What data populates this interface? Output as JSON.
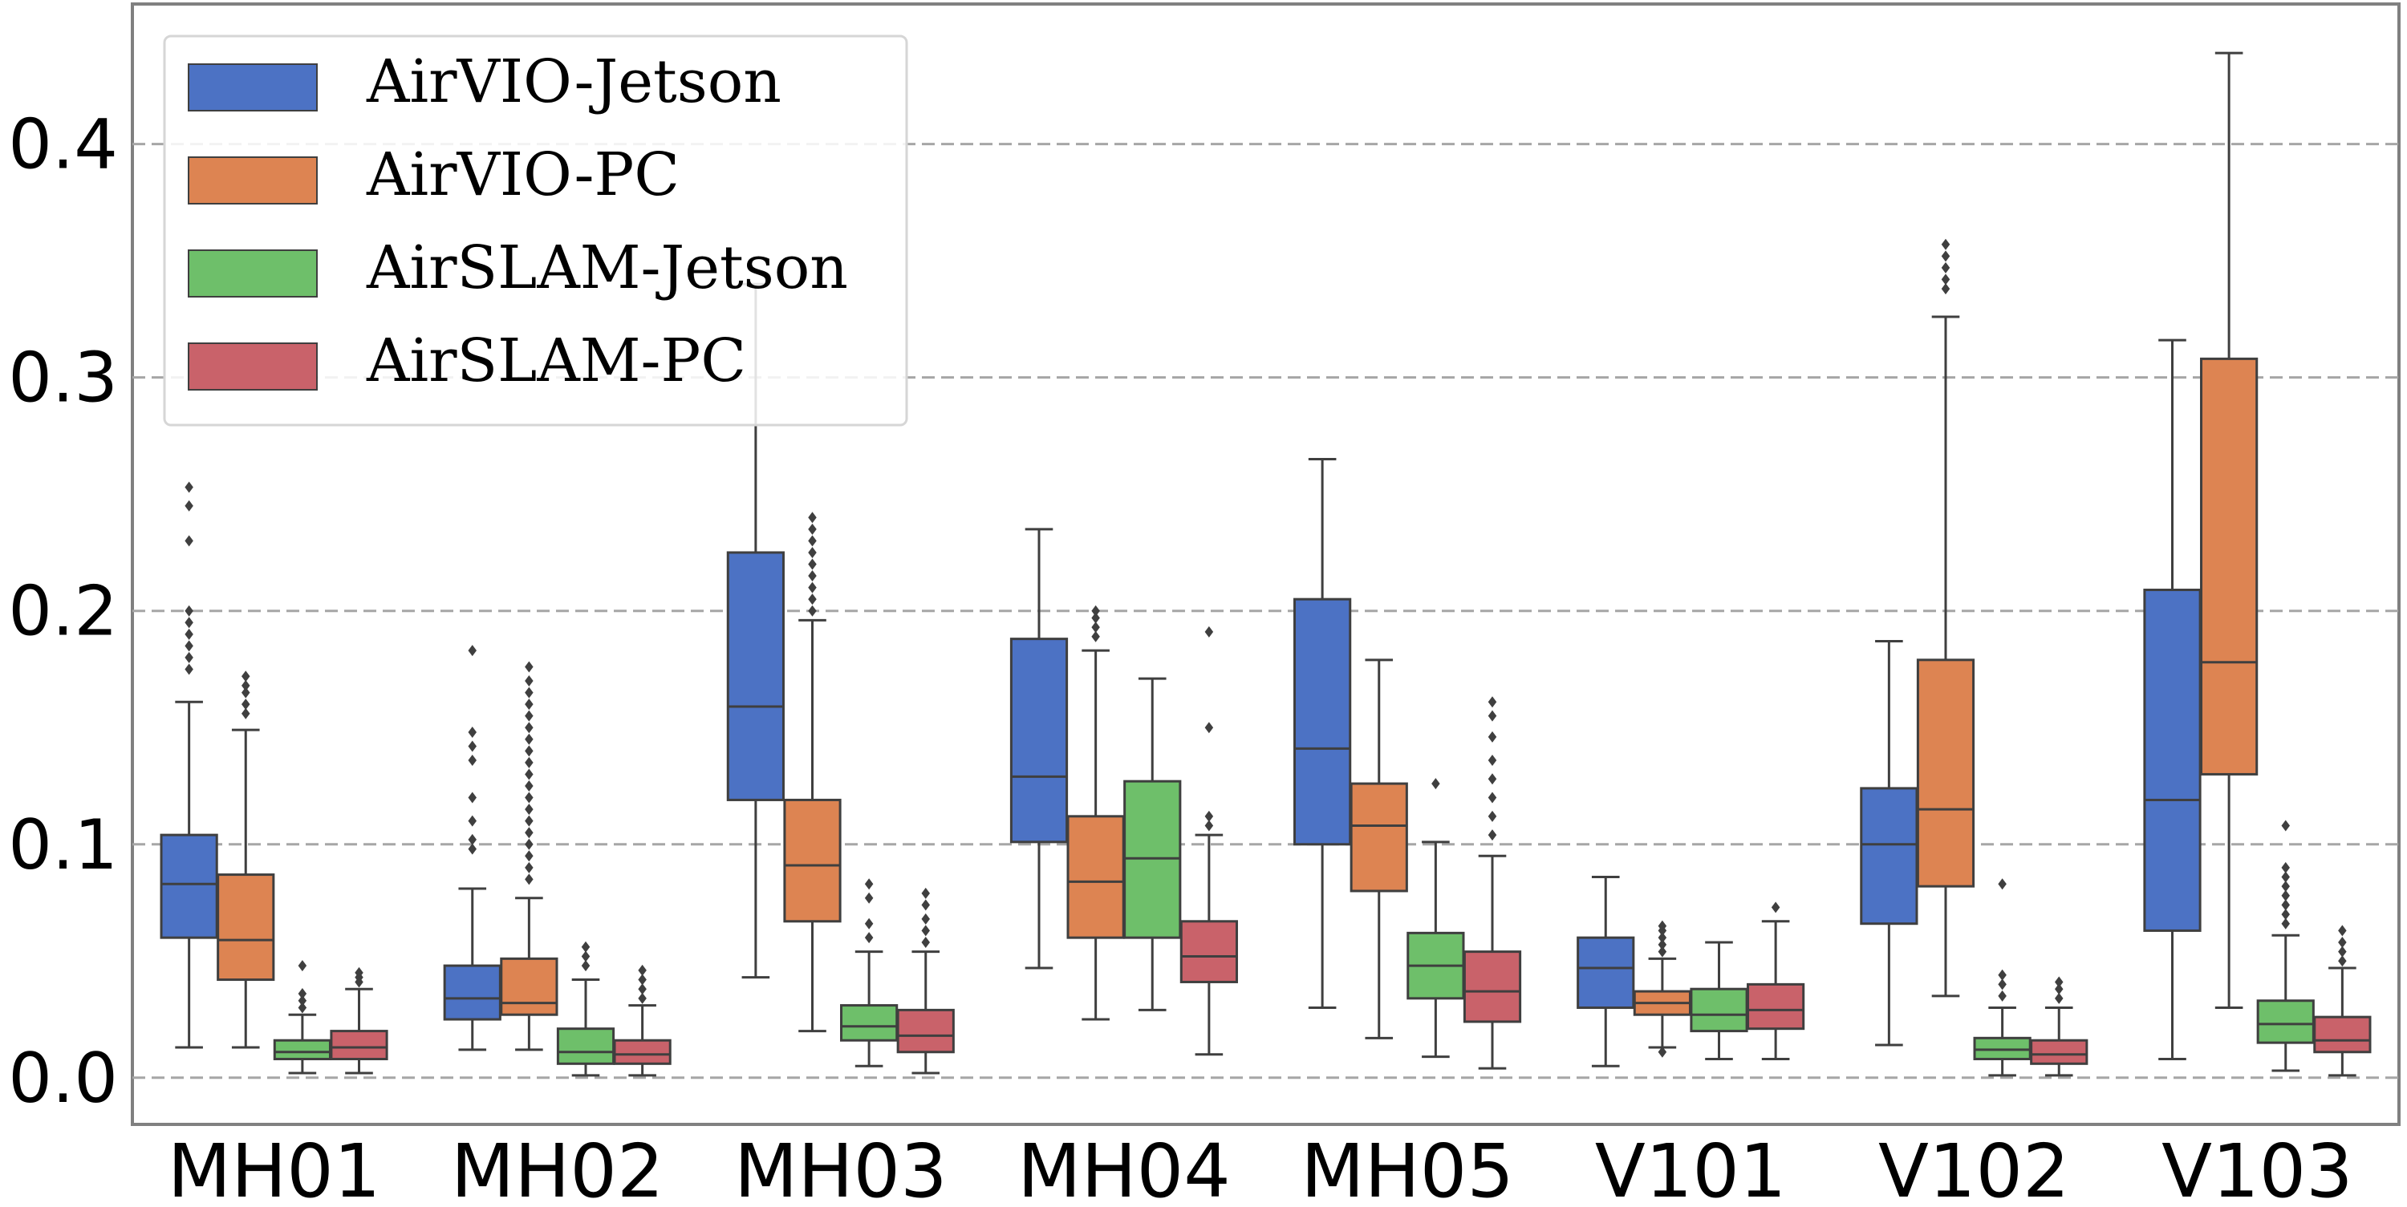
{
  "chart_data": {
    "type": "box",
    "categories": [
      "MH01",
      "MH02",
      "MH03",
      "MH04",
      "MH05",
      "V101",
      "V102",
      "V103"
    ],
    "ylim": [
      -0.02,
      0.46
    ],
    "yticks": [
      0.0,
      0.1,
      0.2,
      0.3,
      0.4
    ],
    "ytick_labels": [
      "0.0",
      "0.1",
      "0.2",
      "0.3",
      "0.4"
    ],
    "grid": "horizontal-dashed",
    "legend_position": "top-left",
    "xlabel": "",
    "ylabel": "",
    "title": "",
    "series": [
      {
        "name": "AirVIO-Jetson",
        "color": "#4c72c4",
        "boxes": [
          {
            "q1": 0.06,
            "median": 0.083,
            "q3": 0.104,
            "whislo": 0.013,
            "whishi": 0.161,
            "fliers": [
              0.175,
              0.18,
              0.185,
              0.19,
              0.195,
              0.2,
              0.23,
              0.245,
              0.253
            ]
          },
          {
            "q1": 0.025,
            "median": 0.034,
            "q3": 0.048,
            "whislo": 0.012,
            "whishi": 0.081,
            "fliers": [
              0.098,
              0.102,
              0.11,
              0.12,
              0.136,
              0.142,
              0.148,
              0.183
            ]
          },
          {
            "q1": 0.119,
            "median": 0.159,
            "q3": 0.225,
            "whislo": 0.043,
            "whishi": 0.34,
            "fliers": []
          },
          {
            "q1": 0.101,
            "median": 0.129,
            "q3": 0.188,
            "whislo": 0.047,
            "whishi": 0.235,
            "fliers": []
          },
          {
            "q1": 0.1,
            "median": 0.141,
            "q3": 0.205,
            "whislo": 0.03,
            "whishi": 0.265,
            "fliers": []
          },
          {
            "q1": 0.03,
            "median": 0.047,
            "q3": 0.06,
            "whislo": 0.005,
            "whishi": 0.086,
            "fliers": []
          },
          {
            "q1": 0.066,
            "median": 0.1,
            "q3": 0.124,
            "whislo": 0.014,
            "whishi": 0.187,
            "fliers": []
          },
          {
            "q1": 0.063,
            "median": 0.119,
            "q3": 0.209,
            "whislo": 0.008,
            "whishi": 0.316,
            "fliers": []
          }
        ]
      },
      {
        "name": "AirVIO-PC",
        "color": "#dd8452",
        "boxes": [
          {
            "q1": 0.042,
            "median": 0.059,
            "q3": 0.087,
            "whislo": 0.013,
            "whishi": 0.149,
            "fliers": [
              0.156,
              0.16,
              0.165,
              0.168,
              0.172
            ]
          },
          {
            "q1": 0.027,
            "median": 0.032,
            "q3": 0.051,
            "whislo": 0.012,
            "whishi": 0.077,
            "fliers": [
              0.085,
              0.09,
              0.095,
              0.1,
              0.105,
              0.11,
              0.115,
              0.12,
              0.125,
              0.13,
              0.135,
              0.14,
              0.145,
              0.15,
              0.155,
              0.16,
              0.165,
              0.17,
              0.176
            ]
          },
          {
            "q1": 0.067,
            "median": 0.091,
            "q3": 0.119,
            "whislo": 0.02,
            "whishi": 0.196,
            "fliers": [
              0.2,
              0.205,
              0.21,
              0.215,
              0.22,
              0.225,
              0.23,
              0.235,
              0.24
            ]
          },
          {
            "q1": 0.06,
            "median": 0.084,
            "q3": 0.112,
            "whislo": 0.025,
            "whishi": 0.183,
            "fliers": [
              0.189,
              0.193,
              0.197,
              0.2
            ]
          },
          {
            "q1": 0.08,
            "median": 0.108,
            "q3": 0.126,
            "whislo": 0.017,
            "whishi": 0.179,
            "fliers": []
          },
          {
            "q1": 0.027,
            "median": 0.032,
            "q3": 0.037,
            "whislo": 0.013,
            "whishi": 0.051,
            "fliers": [
              0.011,
              0.054,
              0.057,
              0.06,
              0.063,
              0.065
            ]
          },
          {
            "q1": 0.082,
            "median": 0.115,
            "q3": 0.179,
            "whislo": 0.035,
            "whishi": 0.326,
            "fliers": [
              0.338,
              0.342,
              0.347,
              0.352,
              0.357
            ]
          },
          {
            "q1": 0.13,
            "median": 0.178,
            "q3": 0.308,
            "whislo": 0.03,
            "whishi": 0.439,
            "fliers": []
          }
        ]
      },
      {
        "name": "AirSLAM-Jetson",
        "color": "#6ebf6a",
        "boxes": [
          {
            "q1": 0.008,
            "median": 0.011,
            "q3": 0.016,
            "whislo": 0.002,
            "whishi": 0.027,
            "fliers": [
              0.03,
              0.033,
              0.036,
              0.048
            ]
          },
          {
            "q1": 0.006,
            "median": 0.011,
            "q3": 0.021,
            "whislo": 0.001,
            "whishi": 0.042,
            "fliers": [
              0.048,
              0.052,
              0.056
            ]
          },
          {
            "q1": 0.016,
            "median": 0.022,
            "q3": 0.031,
            "whislo": 0.005,
            "whishi": 0.054,
            "fliers": [
              0.06,
              0.066,
              0.077,
              0.083
            ]
          },
          {
            "q1": 0.06,
            "median": 0.094,
            "q3": 0.127,
            "whislo": 0.029,
            "whishi": 0.171,
            "fliers": []
          },
          {
            "q1": 0.034,
            "median": 0.048,
            "q3": 0.062,
            "whislo": 0.009,
            "whishi": 0.101,
            "fliers": [
              0.126
            ]
          },
          {
            "q1": 0.02,
            "median": 0.027,
            "q3": 0.038,
            "whislo": 0.008,
            "whishi": 0.058,
            "fliers": []
          },
          {
            "q1": 0.008,
            "median": 0.012,
            "q3": 0.017,
            "whislo": 0.001,
            "whishi": 0.03,
            "fliers": [
              0.035,
              0.04,
              0.044,
              0.083
            ]
          },
          {
            "q1": 0.015,
            "median": 0.023,
            "q3": 0.033,
            "whislo": 0.003,
            "whishi": 0.061,
            "fliers": [
              0.066,
              0.07,
              0.074,
              0.078,
              0.082,
              0.086,
              0.09,
              0.108
            ]
          }
        ]
      },
      {
        "name": "AirSLAM-PC",
        "color": "#c9626a",
        "boxes": [
          {
            "q1": 0.008,
            "median": 0.013,
            "q3": 0.02,
            "whislo": 0.002,
            "whishi": 0.038,
            "fliers": [
              0.041,
              0.043,
              0.045
            ]
          },
          {
            "q1": 0.006,
            "median": 0.01,
            "q3": 0.016,
            "whislo": 0.001,
            "whishi": 0.031,
            "fliers": [
              0.034,
              0.038,
              0.042,
              0.046
            ]
          },
          {
            "q1": 0.011,
            "median": 0.018,
            "q3": 0.029,
            "whislo": 0.002,
            "whishi": 0.054,
            "fliers": [
              0.058,
              0.063,
              0.068,
              0.074,
              0.079
            ]
          },
          {
            "q1": 0.041,
            "median": 0.052,
            "q3": 0.067,
            "whislo": 0.01,
            "whishi": 0.104,
            "fliers": [
              0.108,
              0.112,
              0.15,
              0.191
            ]
          },
          {
            "q1": 0.024,
            "median": 0.037,
            "q3": 0.054,
            "whislo": 0.004,
            "whishi": 0.095,
            "fliers": [
              0.104,
              0.112,
              0.12,
              0.128,
              0.136,
              0.146,
              0.155,
              0.161
            ]
          },
          {
            "q1": 0.021,
            "median": 0.029,
            "q3": 0.04,
            "whislo": 0.008,
            "whishi": 0.067,
            "fliers": [
              0.073
            ]
          },
          {
            "q1": 0.006,
            "median": 0.01,
            "q3": 0.016,
            "whislo": 0.001,
            "whishi": 0.03,
            "fliers": [
              0.034,
              0.038,
              0.041
            ]
          },
          {
            "q1": 0.011,
            "median": 0.016,
            "q3": 0.026,
            "whislo": 0.001,
            "whishi": 0.047,
            "fliers": [
              0.05,
              0.054,
              0.058,
              0.063
            ]
          }
        ]
      }
    ]
  }
}
